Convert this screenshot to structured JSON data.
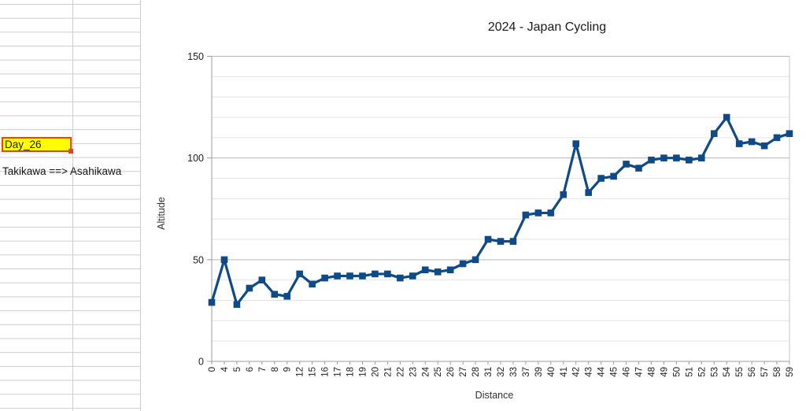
{
  "sheet": {
    "selected_cell_text": "Day_26",
    "route_note": "Takikawa ==> Asahikawa"
  },
  "colors": {
    "series": "#0e4a86",
    "selected_cell_fill": "#ffff00",
    "selected_cell_border": "#ee3d23",
    "fill_handle": "#d6482e",
    "sheet_grid_line": "#cdcdd2",
    "axis_line": "#9c9c9c",
    "major_grid": "#b6b6b6",
    "minor_grid": "#e4e4e8",
    "plot_right_frame": "#c6c6c6",
    "tick_label": "#202020"
  },
  "chart_data": {
    "type": "line",
    "title": "2024 - Japan Cycling",
    "xlabel": "Distance",
    "ylabel": "Altitude",
    "ylim": [
      0,
      150
    ],
    "y_major_ticks": [
      0,
      50,
      100,
      150
    ],
    "y_minor_step": 10,
    "grid": true,
    "legend": "none",
    "marker": "square",
    "categories": [
      "0",
      "4",
      "5",
      "6",
      "7",
      "8",
      "9",
      "12",
      "15",
      "16",
      "17",
      "18",
      "19",
      "20",
      "21",
      "22",
      "23",
      "24",
      "25",
      "26",
      "27",
      "28",
      "31",
      "32",
      "33",
      "37",
      "39",
      "40",
      "41",
      "42",
      "43",
      "44",
      "45",
      "46",
      "47",
      "48",
      "49",
      "50",
      "51",
      "52",
      "53",
      "54",
      "55",
      "56",
      "57",
      "58",
      "59"
    ],
    "values": [
      29,
      50,
      28,
      36,
      40,
      33,
      32,
      43,
      38,
      41,
      42,
      42,
      42,
      43,
      43,
      41,
      42,
      45,
      44,
      45,
      48,
      50,
      60,
      59,
      59,
      72,
      73,
      73,
      82,
      107,
      83,
      90,
      91,
      97,
      95,
      99,
      100,
      100,
      99,
      100,
      112,
      120,
      107,
      108,
      106,
      110,
      112
    ]
  }
}
